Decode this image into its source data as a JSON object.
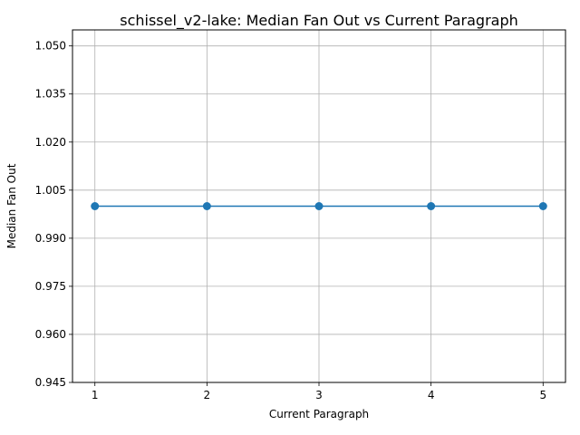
{
  "chart_data": {
    "type": "line",
    "title": "schissel_v2-lake: Median Fan Out vs Current Paragraph",
    "xlabel": "Current Paragraph",
    "ylabel": "Median Fan Out",
    "x": [
      1,
      2,
      3,
      4,
      5
    ],
    "series": [
      {
        "values": [
          1.0,
          1.0,
          1.0,
          1.0,
          1.0
        ],
        "color": "#1f77b4",
        "marker": "circle"
      }
    ],
    "xlim": [
      0.8,
      5.2
    ],
    "ylim": [
      0.945,
      1.055
    ],
    "xticks": [
      "1",
      "2",
      "3",
      "4",
      "5"
    ],
    "yticks": [
      "0.945",
      "0.960",
      "0.975",
      "0.990",
      "1.005",
      "1.020",
      "1.035",
      "1.050"
    ],
    "grid": true,
    "legend": "none"
  }
}
